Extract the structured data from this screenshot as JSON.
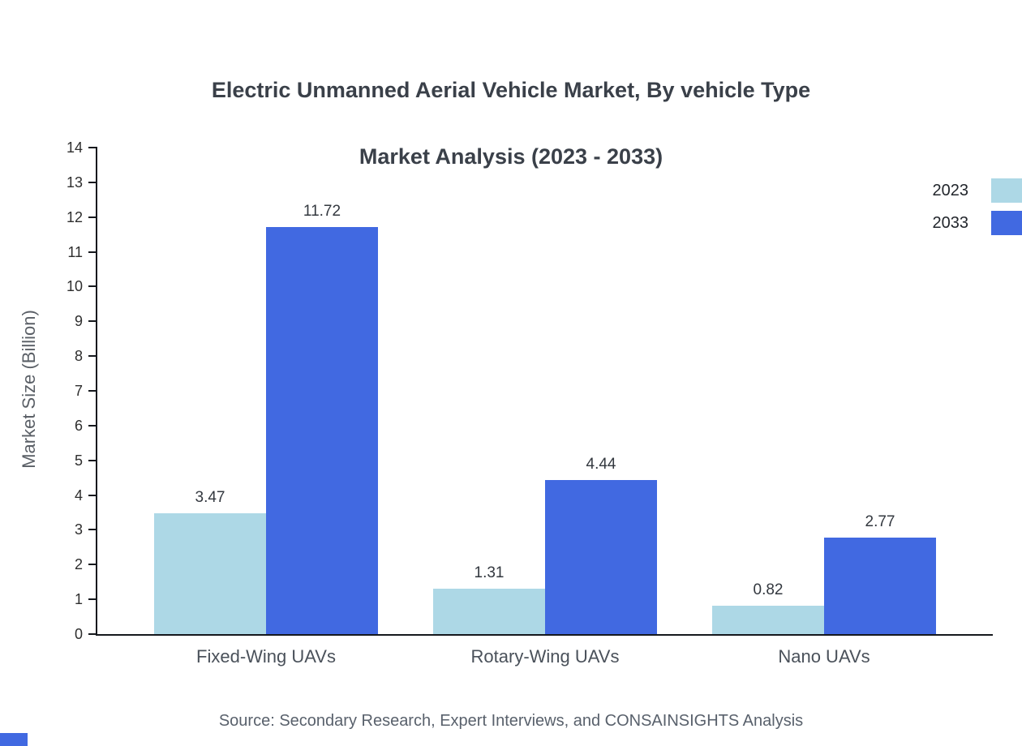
{
  "header": {
    "title_line1": "Electric Unmanned Aerial Vehicle Market, By vehicle Type",
    "title_line2": "Market Analysis (2023 - 2033)"
  },
  "chart_data": {
    "type": "bar",
    "title": "Electric Unmanned Aerial Vehicle Market, By vehicle Type Market Analysis (2023 - 2033)",
    "categories": [
      "Fixed-Wing UAVs",
      "Rotary-Wing UAVs",
      "Nano UAVs"
    ],
    "series": [
      {
        "name": "2023",
        "color": "#add8e6",
        "values": [
          3.47,
          1.31,
          0.82
        ]
      },
      {
        "name": "2033",
        "color": "#4169e1",
        "values": [
          11.72,
          4.44,
          2.77
        ]
      }
    ],
    "xlabel": "",
    "ylabel": "Market Size (Billion)",
    "ylim": [
      0,
      14
    ],
    "ytick_step": 1,
    "grid": false,
    "legend_position": "right-top",
    "value_label_format": "2-decimals"
  },
  "footer": {
    "source": "Source: Secondary Research, Expert Interviews, and CONSAINSIGHTS Analysis"
  }
}
